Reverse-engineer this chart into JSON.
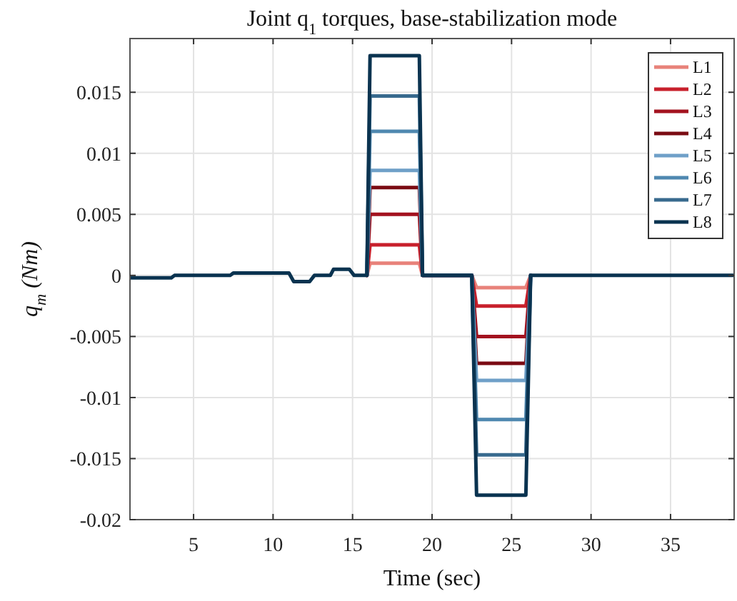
{
  "chart_data": {
    "type": "line",
    "title": "Joint q$_{1}$ torques, base-stabilization mode",
    "xlabel": "Time (sec)",
    "ylabel": "q$_{m}$ (Nm)",
    "x": [
      1,
      3.6,
      3.8,
      7.3,
      7.5,
      11.0,
      11.3,
      12.3,
      12.6,
      13.6,
      13.8,
      14.8,
      15.1,
      15.9,
      16.1,
      19.2,
      19.4,
      22.5,
      22.8,
      25.9,
      26.2,
      39
    ],
    "series": [
      {
        "name": "L1",
        "color": "#e8827a",
        "values": [
          null,
          null,
          null,
          null,
          null,
          null,
          null,
          null,
          null,
          null,
          null,
          null,
          null,
          0,
          0.001,
          0.001,
          0,
          0,
          -0.001,
          -0.001,
          0,
          null
        ]
      },
      {
        "name": "L2",
        "color": "#c8202c",
        "values": [
          null,
          null,
          null,
          null,
          null,
          null,
          null,
          null,
          null,
          null,
          null,
          null,
          null,
          0,
          0.0025,
          0.0025,
          0,
          0,
          -0.0025,
          -0.0025,
          0,
          null
        ]
      },
      {
        "name": "L3",
        "color": "#a3121f",
        "values": [
          null,
          null,
          null,
          null,
          null,
          null,
          null,
          null,
          null,
          null,
          null,
          null,
          null,
          0,
          0.005,
          0.005,
          0,
          0,
          -0.005,
          -0.005,
          0,
          null
        ]
      },
      {
        "name": "L4",
        "color": "#7a0a12",
        "values": [
          null,
          null,
          null,
          null,
          null,
          null,
          null,
          null,
          null,
          null,
          null,
          null,
          null,
          0,
          0.0072,
          0.0072,
          0,
          0,
          -0.0072,
          -0.0072,
          0,
          null
        ]
      },
      {
        "name": "L5",
        "color": "#6fa0c8",
        "values": [
          null,
          null,
          null,
          null,
          null,
          null,
          null,
          null,
          null,
          null,
          null,
          null,
          null,
          0,
          0.0086,
          0.0086,
          0,
          0,
          -0.0086,
          -0.0086,
          0,
          null
        ]
      },
      {
        "name": "L6",
        "color": "#4f88b0",
        "values": [
          null,
          null,
          null,
          null,
          null,
          null,
          null,
          null,
          null,
          null,
          null,
          null,
          null,
          0,
          0.0118,
          0.0118,
          0,
          0,
          -0.0118,
          -0.0118,
          0,
          null
        ]
      },
      {
        "name": "L7",
        "color": "#386a8e",
        "values": [
          null,
          null,
          null,
          null,
          null,
          null,
          null,
          null,
          null,
          null,
          null,
          null,
          null,
          0,
          0.0147,
          0.0147,
          0,
          0,
          -0.0147,
          -0.0147,
          0,
          null
        ]
      },
      {
        "name": "L8",
        "color": "#0a3350",
        "values": [
          -0.0002,
          -0.0002,
          0,
          0,
          0.0002,
          0.0002,
          -0.0005,
          -0.0005,
          0,
          0,
          0.0005,
          0.0005,
          0,
          0,
          0.018,
          0.018,
          0,
          0,
          -0.018,
          -0.018,
          0,
          0
        ]
      }
    ],
    "xlim": [
      1,
      39
    ],
    "xticks": [
      5,
      10,
      15,
      20,
      25,
      30,
      35
    ],
    "ylim": [
      -0.02,
      0.0194
    ],
    "yticks": [
      -0.02,
      -0.015,
      -0.01,
      -0.005,
      0,
      0.005,
      0.01,
      0.015
    ],
    "grid": true,
    "legend": "top right"
  }
}
